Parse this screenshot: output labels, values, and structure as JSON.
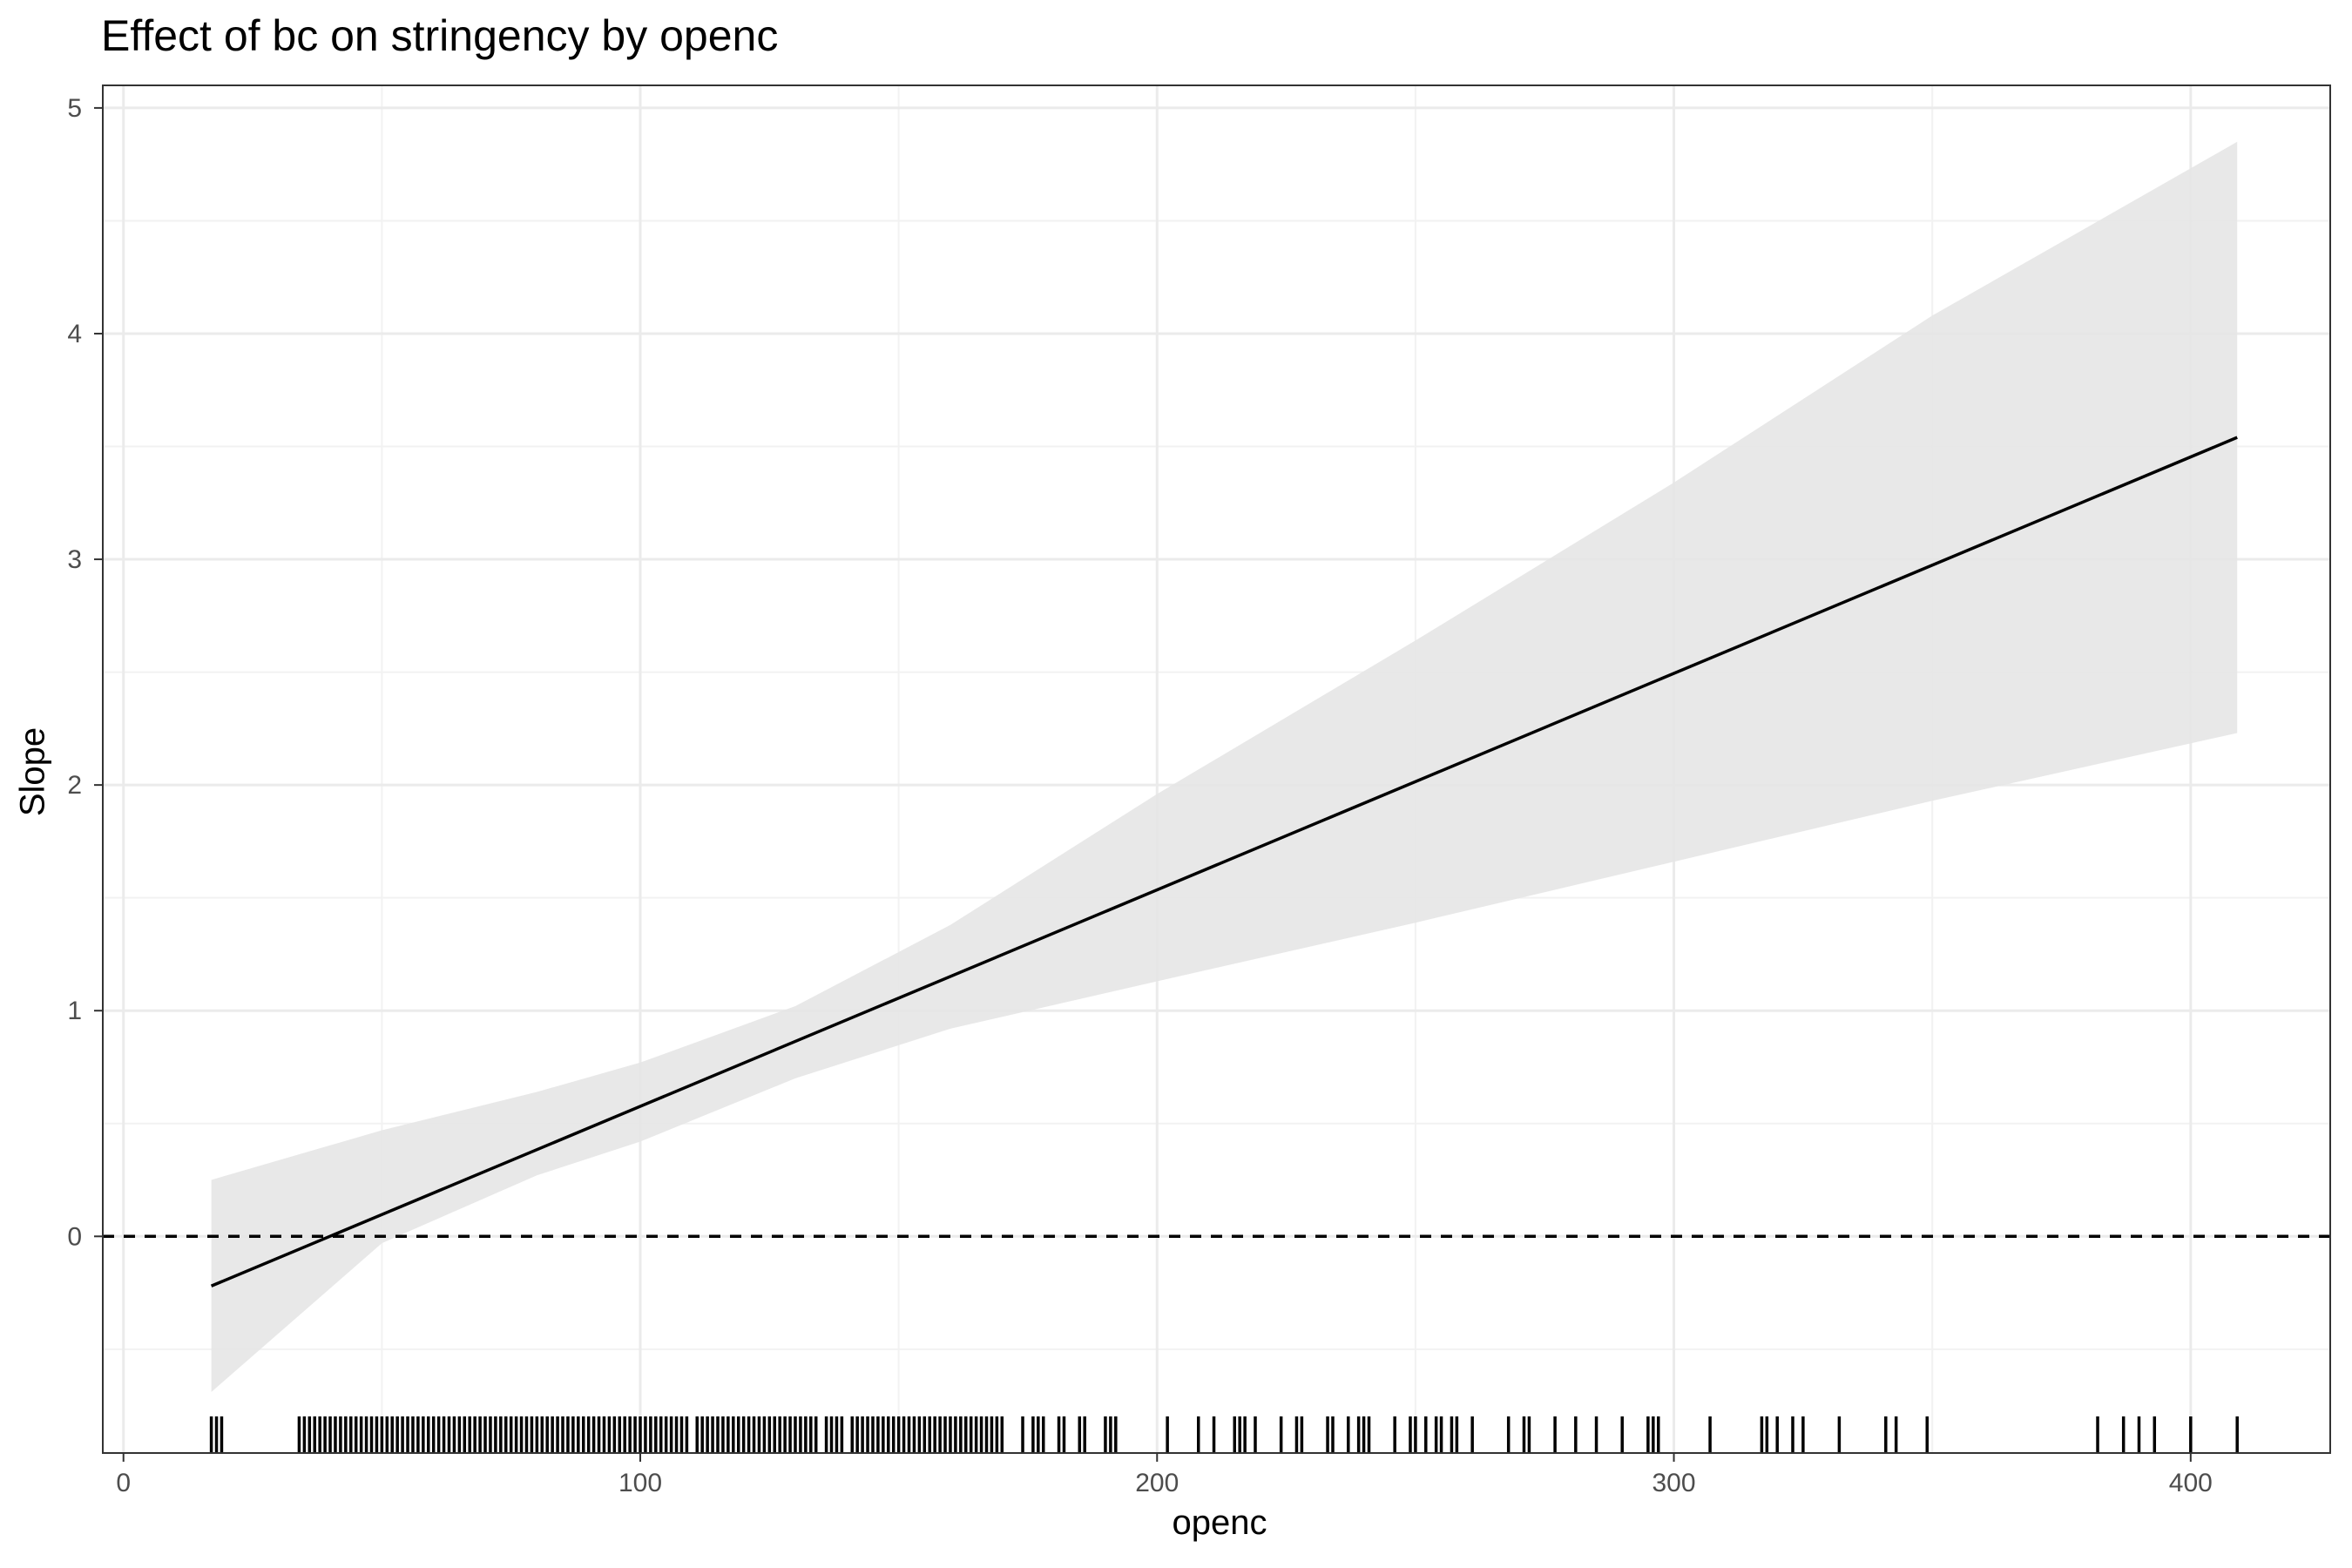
{
  "chart_data": {
    "type": "line",
    "title": "Effect of bc on stringency by openc",
    "xlabel": "openc",
    "ylabel": "Slope",
    "xlim": [
      -4,
      427
    ],
    "ylim": [
      -0.96,
      5.1
    ],
    "x_ticks": [
      0,
      100,
      200,
      300,
      400
    ],
    "y_ticks": [
      0,
      1,
      2,
      3,
      4,
      5
    ],
    "grid": true,
    "reference_line": {
      "y": 0,
      "style": "dashed"
    },
    "series": [
      {
        "style": "line",
        "x": [
          17,
          409
        ],
        "y": [
          -0.22,
          3.54
        ]
      }
    ],
    "confidence_band": {
      "x": [
        17,
        50,
        80,
        100,
        130,
        160,
        200,
        250,
        300,
        350,
        409
      ],
      "lower": [
        -0.69,
        -0.03,
        0.27,
        0.42,
        0.7,
        0.92,
        1.13,
        1.39,
        1.66,
        1.93,
        2.23
      ],
      "upper": [
        0.25,
        0.47,
        0.64,
        0.77,
        1.02,
        1.38,
        1.96,
        2.64,
        3.34,
        4.08,
        4.85
      ]
    },
    "rug_x": [
      17,
      18,
      19,
      34,
      35,
      36,
      37,
      38,
      39,
      40,
      41,
      42,
      43,
      44,
      45,
      46,
      47,
      48,
      49,
      50,
      51,
      52,
      53,
      54,
      55,
      56,
      57,
      58,
      59,
      60,
      61,
      62,
      63,
      64,
      65,
      66,
      67,
      68,
      69,
      70,
      71,
      72,
      73,
      74,
      75,
      76,
      77,
      78,
      79,
      80,
      81,
      82,
      83,
      84,
      85,
      86,
      87,
      88,
      89,
      90,
      91,
      92,
      93,
      94,
      95,
      96,
      97,
      98,
      99,
      100,
      101,
      102,
      103,
      104,
      105,
      106,
      107,
      108,
      109,
      111,
      112,
      113,
      114,
      115,
      116,
      117,
      118,
      119,
      120,
      121,
      122,
      123,
      124,
      125,
      126,
      127,
      128,
      129,
      130,
      131,
      132,
      133,
      134,
      136,
      137,
      138,
      139,
      141,
      142,
      143,
      144,
      145,
      146,
      147,
      148,
      149,
      150,
      151,
      152,
      153,
      154,
      155,
      156,
      157,
      158,
      159,
      160,
      161,
      162,
      163,
      164,
      165,
      166,
      167,
      168,
      169,
      170,
      174,
      176,
      177,
      178,
      181,
      182,
      185,
      186,
      190,
      191,
      192,
      202,
      208,
      211,
      215,
      216,
      217,
      219,
      224,
      227,
      228,
      233,
      234,
      237,
      239,
      240,
      241,
      246,
      249,
      250,
      252,
      254,
      255,
      257,
      258,
      261,
      268,
      271,
      272,
      277,
      281,
      285,
      290,
      295,
      296,
      297,
      307,
      317,
      318,
      320,
      323,
      325,
      332,
      341,
      343,
      349,
      382,
      387,
      390,
      393,
      400,
      409
    ]
  }
}
